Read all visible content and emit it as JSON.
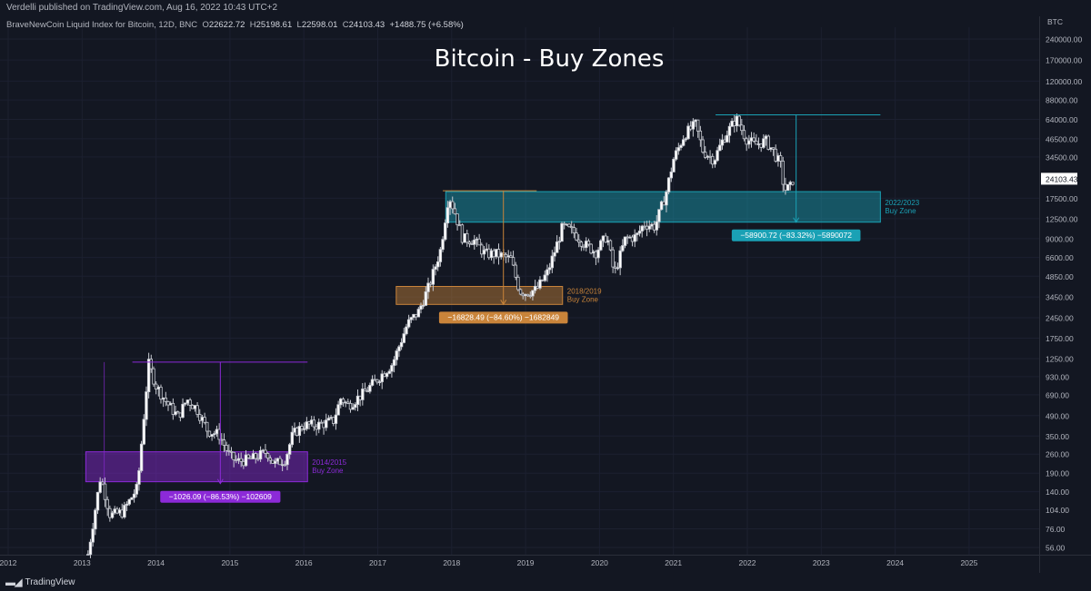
{
  "header": {
    "publisher": "Verdelli published on TradingView.com, Aug 16, 2022 10:43 UTC+2",
    "symbol": "BraveNewCoin Liquid Index for Bitcoin, 12D, BNC",
    "ohlc": [
      {
        "k": "O",
        "v": "22622.72"
      },
      {
        "k": "H",
        "v": "25198.61"
      },
      {
        "k": "L",
        "v": "22598.01"
      },
      {
        "k": "C",
        "v": "24103.43"
      }
    ],
    "change": "+1488.75 (+6.58%)"
  },
  "footer": {
    "brand": "TradingView"
  },
  "colors": {
    "background": "#131722",
    "candle": "#c8cbd2",
    "grid": "#1c2030",
    "purple": "#8c2ad8",
    "orange": "#c9843a",
    "cyan": "#1aa1b5",
    "price_tag_bg": "#ffffff"
  },
  "chart_data": {
    "type": "candlestick",
    "title": "Bitcoin - Buy Zones",
    "price_axis": {
      "unit": "BTC",
      "scale": "log",
      "tick_labels": [
        "240000.00",
        "170000.00",
        "120000.00",
        "88000.00",
        "64000.00",
        "46500.00",
        "34500.00",
        "24103.43",
        "17500.00",
        "12500.00",
        "9000.00",
        "6600.00",
        "4850.00",
        "3450.00",
        "2450.00",
        "1750.00",
        "1250.00",
        "930.00",
        "690.00",
        "490.00",
        "350.00",
        "260.00",
        "190.00",
        "140.00",
        "104.00",
        "76.00",
        "56.00"
      ],
      "last_price": "24103.43"
    },
    "time_axis": {
      "tick_labels": [
        "2012",
        "2013",
        "2014",
        "2015",
        "2016",
        "2017",
        "2018",
        "2019",
        "2020",
        "2021",
        "2022",
        "2023",
        "2024",
        "2025"
      ],
      "range": [
        "2012",
        "2025"
      ]
    },
    "zones": [
      {
        "name": "2014/2015\nBuy Zone",
        "low": 165,
        "high": 270,
        "color": "purple",
        "start": 2013.05,
        "end": 2016.05
      },
      {
        "name": "2018/2019\nBuy Zone",
        "low": 3050,
        "high": 4100,
        "color": "orange",
        "start": 2017.25,
        "end": 2019.5
      },
      {
        "name": "2022/2023\nBuy Zone",
        "low": 11800,
        "high": 19500,
        "color": "cyan",
        "start": 2017.92,
        "end": 2023.8
      }
    ],
    "drawdowns": [
      {
        "label": "−1026.09 (−86.53%) −102609",
        "color": "purple",
        "from_price": 1180,
        "to_price": 160,
        "peak_date": 2013.92,
        "trough_date": 2014.87,
        "line_start": 2013.68,
        "line_end": 2016.05,
        "measure_start": 2013.3
      },
      {
        "label": "−16828.49 (−84.60%) −1682849",
        "color": "orange",
        "from_price": 19800,
        "to_price": 3050,
        "peak_date": 2017.97,
        "trough_date": 2018.7,
        "line_start": 2017.88,
        "line_end": 2019.15
      },
      {
        "label": "−58900.72 (−83.32%) −5890072",
        "color": "cyan",
        "from_price": 69000,
        "to_price": 11800,
        "peak_date": 2021.86,
        "trough_date": 2022.66,
        "line_start": 2021.57,
        "line_end": 2023.8
      }
    ],
    "price_path": [
      [
        2013.08,
        50
      ],
      [
        2013.25,
        180
      ],
      [
        2013.38,
        95
      ],
      [
        2013.55,
        100
      ],
      [
        2013.75,
        150
      ],
      [
        2013.9,
        1150
      ],
      [
        2014.0,
        800
      ],
      [
        2014.15,
        600
      ],
      [
        2014.3,
        480
      ],
      [
        2014.42,
        640
      ],
      [
        2014.55,
        550
      ],
      [
        2014.7,
        380
      ],
      [
        2014.85,
        360
      ],
      [
        2015.0,
        250
      ],
      [
        2015.1,
        230
      ],
      [
        2015.3,
        240
      ],
      [
        2015.5,
        270
      ],
      [
        2015.6,
        220
      ],
      [
        2015.75,
        240
      ],
      [
        2015.85,
        360
      ],
      [
        2016.0,
        420
      ],
      [
        2016.2,
        420
      ],
      [
        2016.4,
        450
      ],
      [
        2016.5,
        650
      ],
      [
        2016.6,
        580
      ],
      [
        2016.8,
        700
      ],
      [
        2017.0,
        900
      ],
      [
        2017.2,
        1150
      ],
      [
        2017.4,
        2200
      ],
      [
        2017.55,
        2700
      ],
      [
        2017.7,
        4200
      ],
      [
        2017.85,
        7500
      ],
      [
        2017.96,
        18500
      ],
      [
        2018.05,
        13500
      ],
      [
        2018.15,
        9000
      ],
      [
        2018.3,
        8800
      ],
      [
        2018.45,
        7000
      ],
      [
        2018.6,
        7000
      ],
      [
        2018.8,
        6400
      ],
      [
        2018.92,
        3800
      ],
      [
        2019.0,
        3700
      ],
      [
        2019.15,
        3900
      ],
      [
        2019.3,
        5200
      ],
      [
        2019.45,
        9000
      ],
      [
        2019.5,
        11000
      ],
      [
        2019.65,
        10000
      ],
      [
        2019.8,
        8200
      ],
      [
        2019.95,
        7200
      ],
      [
        2020.1,
        9500
      ],
      [
        2020.2,
        5000
      ],
      [
        2020.35,
        9000
      ],
      [
        2020.5,
        9300
      ],
      [
        2020.6,
        11500
      ],
      [
        2020.75,
        11000
      ],
      [
        2020.9,
        19000
      ],
      [
        2021.0,
        33000
      ],
      [
        2021.15,
        50000
      ],
      [
        2021.3,
        59000
      ],
      [
        2021.4,
        38000
      ],
      [
        2021.55,
        33000
      ],
      [
        2021.68,
        47000
      ],
      [
        2021.85,
        65000
      ],
      [
        2021.98,
        47000
      ],
      [
        2022.1,
        42000
      ],
      [
        2022.25,
        45000
      ],
      [
        2022.35,
        38000
      ],
      [
        2022.45,
        30000
      ],
      [
        2022.5,
        20000
      ],
      [
        2022.58,
        21000
      ],
      [
        2022.62,
        24103
      ]
    ]
  }
}
